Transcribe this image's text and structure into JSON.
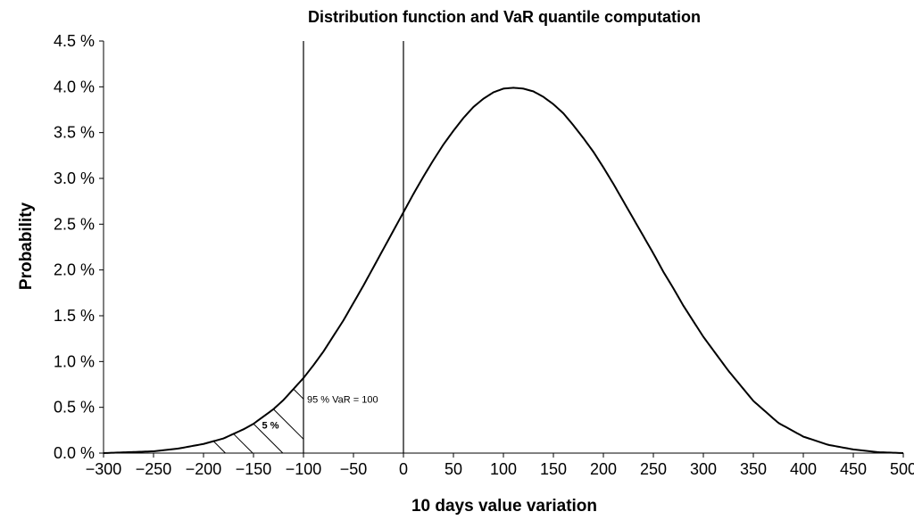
{
  "chart_data": {
    "type": "line",
    "title": "Distribution function and VaR quantile computation",
    "xlabel": "10 days value variation",
    "ylabel": "Probability",
    "xlim": [
      -300,
      500
    ],
    "ylim": [
      0,
      4.5
    ],
    "x_ticks": [
      -300,
      -250,
      -200,
      -150,
      -100,
      -50,
      0,
      50,
      100,
      150,
      200,
      250,
      300,
      350,
      400,
      450,
      500
    ],
    "x_tick_labels": [
      "−300",
      "−250",
      "−200",
      "−150",
      "−100",
      "−50",
      "0",
      "50",
      "100",
      "150",
      "200",
      "250",
      "300",
      "350",
      "400",
      "450",
      "500"
    ],
    "y_ticks": [
      0,
      0.5,
      1.0,
      1.5,
      2.0,
      2.5,
      3.0,
      3.5,
      4.0,
      4.5
    ],
    "y_tick_labels": [
      "0.0 %",
      "0.5 %",
      "1.0 %",
      "1.5 %",
      "2.0 %",
      "2.5 %",
      "3.0 %",
      "3.5 %",
      "4.0 %",
      "4.5 %"
    ],
    "y_unit": "percent",
    "grid": false,
    "legend": "none",
    "series": [
      {
        "x": [
          -300,
          -275,
          -250,
          -225,
          -200,
          -190,
          -180,
          -170,
          -160,
          -150,
          -140,
          -130,
          -120,
          -110,
          -100,
          -90,
          -80,
          -70,
          -60,
          -50,
          -40,
          -30,
          -20,
          -10,
          0,
          10,
          20,
          30,
          40,
          50,
          60,
          70,
          80,
          90,
          100,
          110,
          120,
          130,
          140,
          150,
          160,
          170,
          180,
          190,
          200,
          210,
          220,
          230,
          240,
          250,
          260,
          270,
          280,
          290,
          300,
          325,
          350,
          375,
          400,
          425,
          450,
          475,
          500
        ],
        "values": [
          0.0,
          0.01,
          0.02,
          0.05,
          0.1,
          0.13,
          0.16,
          0.21,
          0.26,
          0.32,
          0.4,
          0.48,
          0.58,
          0.7,
          0.82,
          0.96,
          1.11,
          1.28,
          1.45,
          1.64,
          1.83,
          2.03,
          2.23,
          2.43,
          2.63,
          2.83,
          3.02,
          3.2,
          3.37,
          3.52,
          3.66,
          3.78,
          3.87,
          3.94,
          3.98,
          3.99,
          3.98,
          3.95,
          3.89,
          3.81,
          3.71,
          3.58,
          3.44,
          3.29,
          3.12,
          2.94,
          2.75,
          2.56,
          2.37,
          2.18,
          1.98,
          1.8,
          1.61,
          1.44,
          1.27,
          0.9,
          0.57,
          0.33,
          0.18,
          0.09,
          0.04,
          0.01,
          0.0
        ]
      }
    ],
    "vertical_lines": [
      -100,
      0
    ],
    "shaded_tail": {
      "from": -190,
      "to": -100,
      "pattern": "hatched"
    },
    "annotations": [
      {
        "text": "95 % VaR = 100",
        "x": -100,
        "y": 0.55
      },
      {
        "text": "5 %",
        "x": -133,
        "y": 0.27
      }
    ]
  }
}
